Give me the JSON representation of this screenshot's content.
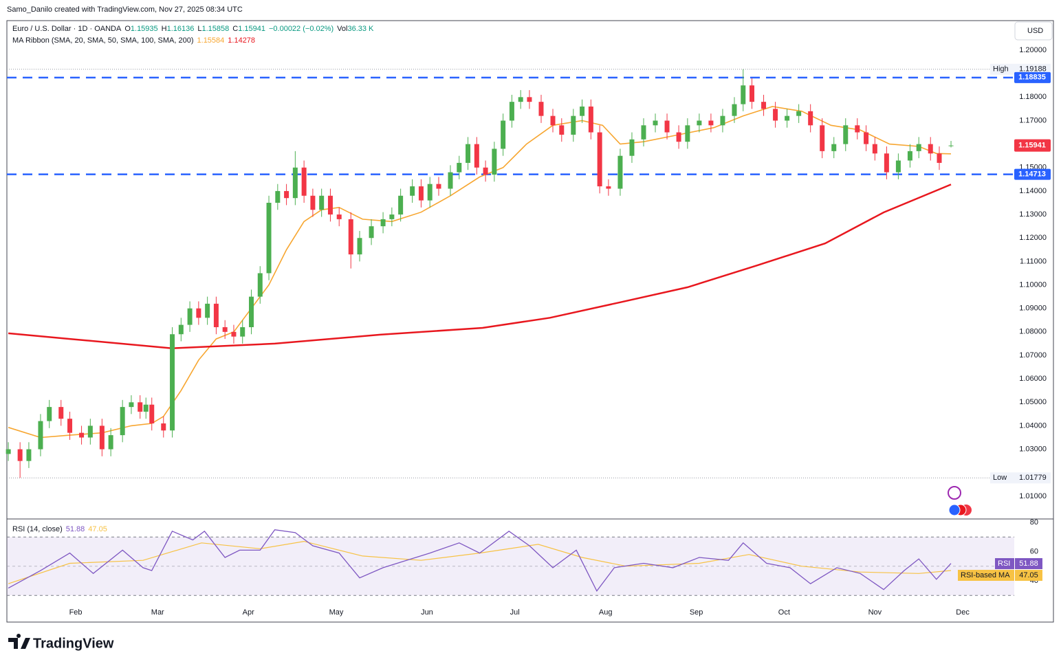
{
  "header": {
    "credit": "Samo_Danilo created with TradingView.com, Nov 27, 2025 08:34 UTC",
    "currency": "USD",
    "brand": "TradingView"
  },
  "chart_data": [
    {
      "type": "candlestick",
      "title": "Euro / U.S. Dollar · 1D · OANDA",
      "legend_fields": {
        "open": "O",
        "high": "H",
        "low": "L",
        "close": "C"
      },
      "change": "−0.00022 (−0.02%)",
      "volume_label": "Vol",
      "volume": "36.33 K",
      "ribbon_title": "MA Ribbon (SMA, 20, SMA, 50, SMA, 100, SMA, 200)",
      "up_color": "#4caf50",
      "down_color": "#f23645",
      "x": [
        9,
        13,
        16,
        20,
        23,
        27,
        30,
        34,
        37,
        41,
        44,
        48,
        51,
        54,
        56,
        58,
        62,
        65,
        68,
        71,
        74,
        77,
        80,
        83,
        86,
        89,
        92,
        95,
        98,
        101,
        104,
        107,
        110,
        113,
        116,
        119,
        122,
        126,
        129,
        133,
        137,
        140,
        143,
        147,
        150,
        153,
        156,
        160,
        163,
        166,
        169,
        172,
        175,
        178,
        181,
        184,
        187,
        191,
        195,
        198,
        202,
        205,
        208,
        211,
        214,
        218,
        222,
        226,
        230,
        234,
        238,
        241,
        245,
        249,
        253,
        257,
        260,
        263,
        267,
        271,
        275,
        279,
        283,
        287,
        291,
        295,
        299,
        302,
        305,
        309,
        313,
        317,
        320,
        324,
        327,
        331
      ],
      "open": [
        1.028,
        1.03,
        1.025,
        1.03,
        1.042,
        1.048,
        1.043,
        1.037,
        1.035,
        1.04,
        1.03,
        1.036,
        1.048,
        1.05,
        1.046,
        1.049,
        1.041,
        1.038,
        1.079,
        1.083,
        1.09,
        1.086,
        1.092,
        1.082,
        1.08,
        1.078,
        1.082,
        1.095,
        1.105,
        1.135,
        1.14,
        1.137,
        1.15,
        1.138,
        1.132,
        1.138,
        1.13,
        1.128,
        1.113,
        1.12,
        1.125,
        1.128,
        1.13,
        1.138,
        1.142,
        1.136,
        1.143,
        1.141,
        1.148,
        1.152,
        1.16,
        1.15,
        1.147,
        1.158,
        1.17,
        1.178,
        1.18,
        1.178,
        1.172,
        1.168,
        1.164,
        1.172,
        1.176,
        1.165,
        1.142,
        1.141,
        1.155,
        1.162,
        1.168,
        1.17,
        1.165,
        1.161,
        1.168,
        1.17,
        1.168,
        1.172,
        1.177,
        1.185,
        1.178,
        1.175,
        1.17,
        1.172,
        1.174,
        1.168,
        1.157,
        1.16,
        1.168,
        1.165,
        1.16,
        1.156,
        1.148,
        1.153,
        1.157,
        1.16,
        1.156,
        1.15935
      ],
      "high": [
        1.033,
        1.033,
        1.033,
        1.045,
        1.051,
        1.051,
        1.046,
        1.04,
        1.043,
        1.043,
        1.039,
        1.051,
        1.053,
        1.053,
        1.052,
        1.052,
        1.044,
        1.082,
        1.086,
        1.093,
        1.093,
        1.095,
        1.095,
        1.085,
        1.083,
        1.085,
        1.098,
        1.108,
        1.138,
        1.143,
        1.143,
        1.157,
        1.153,
        1.141,
        1.141,
        1.141,
        1.133,
        1.131,
        1.123,
        1.128,
        1.131,
        1.133,
        1.141,
        1.145,
        1.145,
        1.146,
        1.146,
        1.151,
        1.155,
        1.163,
        1.163,
        1.153,
        1.161,
        1.173,
        1.181,
        1.183,
        1.183,
        1.181,
        1.175,
        1.171,
        1.175,
        1.179,
        1.179,
        1.168,
        1.145,
        1.158,
        1.165,
        1.171,
        1.173,
        1.173,
        1.168,
        1.171,
        1.173,
        1.173,
        1.175,
        1.18,
        1.19188,
        1.188,
        1.181,
        1.178,
        1.175,
        1.177,
        1.177,
        1.171,
        1.163,
        1.171,
        1.171,
        1.168,
        1.163,
        1.159,
        1.156,
        1.16,
        1.163,
        1.163,
        1.159,
        1.16136
      ],
      "low": [
        1.025,
        1.01779,
        1.022,
        1.027,
        1.039,
        1.04,
        1.034,
        1.032,
        1.032,
        1.027,
        1.027,
        1.033,
        1.045,
        1.043,
        1.043,
        1.038,
        1.035,
        1.035,
        1.076,
        1.08,
        1.083,
        1.083,
        1.079,
        1.077,
        1.075,
        1.075,
        1.079,
        1.092,
        1.102,
        1.132,
        1.134,
        1.134,
        1.135,
        1.129,
        1.129,
        1.127,
        1.125,
        1.107,
        1.11,
        1.117,
        1.122,
        1.125,
        1.127,
        1.135,
        1.133,
        1.133,
        1.138,
        1.138,
        1.145,
        1.149,
        1.147,
        1.144,
        1.144,
        1.155,
        1.167,
        1.175,
        1.175,
        1.169,
        1.165,
        1.161,
        1.161,
        1.169,
        1.162,
        1.139,
        1.138,
        1.138,
        1.152,
        1.159,
        1.165,
        1.162,
        1.158,
        1.158,
        1.165,
        1.165,
        1.165,
        1.169,
        1.174,
        1.175,
        1.172,
        1.167,
        1.167,
        1.169,
        1.165,
        1.154,
        1.154,
        1.157,
        1.162,
        1.157,
        1.153,
        1.145,
        1.145,
        1.15,
        1.154,
        1.153,
        1.149,
        1.15858
      ],
      "close": [
        1.03,
        1.025,
        1.03,
        1.042,
        1.048,
        1.043,
        1.037,
        1.035,
        1.04,
        1.03,
        1.036,
        1.048,
        1.05,
        1.046,
        1.049,
        1.041,
        1.038,
        1.079,
        1.083,
        1.09,
        1.086,
        1.092,
        1.082,
        1.08,
        1.078,
        1.082,
        1.095,
        1.105,
        1.135,
        1.14,
        1.137,
        1.15,
        1.138,
        1.132,
        1.138,
        1.13,
        1.128,
        1.113,
        1.12,
        1.125,
        1.128,
        1.13,
        1.138,
        1.142,
        1.136,
        1.143,
        1.141,
        1.148,
        1.152,
        1.16,
        1.15,
        1.147,
        1.158,
        1.17,
        1.178,
        1.18,
        1.178,
        1.172,
        1.168,
        1.164,
        1.172,
        1.176,
        1.165,
        1.142,
        1.141,
        1.155,
        1.162,
        1.168,
        1.17,
        1.165,
        1.161,
        1.168,
        1.17,
        1.168,
        1.172,
        1.177,
        1.185,
        1.178,
        1.175,
        1.17,
        1.172,
        1.174,
        1.168,
        1.157,
        1.16,
        1.168,
        1.165,
        1.16,
        1.156,
        1.148,
        1.153,
        1.157,
        1.16,
        1.156,
        1.152,
        1.15941
      ],
      "lines": [
        {
          "color": "#f7a630",
          "x": [
            9,
            20,
            30,
            41,
            51,
            58,
            62,
            68,
            74,
            80,
            86,
            92,
            98,
            104,
            110,
            116,
            122,
            130,
            140,
            150,
            160,
            170,
            178,
            186,
            195,
            205,
            212,
            218,
            226,
            238,
            250,
            260,
            270,
            280,
            290,
            300,
            310,
            320,
            326,
            331
          ],
          "values": [
            1.0393,
            1.035,
            1.036,
            1.037,
            1.04,
            1.041,
            1.044,
            1.055,
            1.068,
            1.077,
            1.08,
            1.09,
            1.1,
            1.115,
            1.127,
            1.132,
            1.133,
            1.128,
            1.127,
            1.131,
            1.138,
            1.146,
            1.15,
            1.16,
            1.168,
            1.17,
            1.168,
            1.16,
            1.161,
            1.164,
            1.167,
            1.172,
            1.176,
            1.174,
            1.168,
            1.166,
            1.16,
            1.159,
            1.156,
            1.15584
          ]
        },
        {
          "color": "#e8171e",
          "x": [
            9,
            30,
            65,
            100,
            136,
            171,
            194,
            218,
            241,
            265,
            288,
            308,
            331
          ],
          "values": [
            1.0794,
            1.077,
            1.073,
            1.075,
            1.0788,
            1.0817,
            1.086,
            1.0926,
            1.099,
            1.1084,
            1.1177,
            1.1309,
            1.14278
          ]
        }
      ],
      "levels": [
        {
          "value": 1.18835,
          "color": "#2962ff"
        },
        {
          "value": 1.14713,
          "color": "#2962ff"
        }
      ],
      "high_label": "High",
      "low_label": "Low",
      "xlim": [
        8.5,
        352.6
      ],
      "xticks": [
        {
          "value": 32,
          "label": "Feb"
        },
        {
          "value": 60,
          "label": "Mar"
        },
        {
          "value": 91,
          "label": "Apr"
        },
        {
          "value": 121,
          "label": "May"
        },
        {
          "value": 152,
          "label": "Jun"
        },
        {
          "value": 182,
          "label": "Jul"
        },
        {
          "value": 213,
          "label": "Aug"
        },
        {
          "value": 244,
          "label": "Sep"
        },
        {
          "value": 274,
          "label": "Oct"
        },
        {
          "value": 305,
          "label": "Nov"
        },
        {
          "value": 335,
          "label": "Dec"
        }
      ],
      "ylim": [
        1.0003,
        1.2126
      ],
      "yticks": [
        {
          "value": 1.2,
          "label": "1.20000"
        },
        {
          "value": 1.18,
          "label": "1.18000"
        },
        {
          "value": 1.17,
          "label": "1.17000"
        },
        {
          "value": 1.15,
          "label": "1.15000"
        },
        {
          "value": 1.14,
          "label": "1.14000"
        },
        {
          "value": 1.13,
          "label": "1.13000"
        },
        {
          "value": 1.12,
          "label": "1.12000"
        },
        {
          "value": 1.11,
          "label": "1.11000"
        },
        {
          "value": 1.1,
          "label": "1.10000"
        },
        {
          "value": 1.09,
          "label": "1.09000"
        },
        {
          "value": 1.08,
          "label": "1.08000"
        },
        {
          "value": 1.07,
          "label": "1.07000"
        },
        {
          "value": 1.06,
          "label": "1.06000"
        },
        {
          "value": 1.05,
          "label": "1.05000"
        },
        {
          "value": 1.04,
          "label": "1.04000"
        },
        {
          "value": 1.03,
          "label": "1.03000"
        },
        {
          "value": 1.01,
          "label": "1.01000"
        }
      ]
    },
    {
      "type": "line",
      "title": "RSI (14, close)",
      "series": [
        {
          "name": "RSI",
          "color": "#7e57c2",
          "x": [
            9,
            20,
            30,
            38,
            48,
            55,
            58,
            65,
            72,
            76,
            83,
            88,
            95,
            100,
            107,
            113,
            122,
            129,
            137,
            145,
            153,
            163,
            170,
            180,
            187,
            195,
            203,
            210,
            216,
            226,
            236,
            245,
            255,
            260,
            268,
            276,
            283,
            292,
            300,
            308,
            315,
            320,
            326,
            331
          ],
          "values": [
            35,
            47,
            59,
            45,
            61,
            49,
            47,
            74,
            68,
            74,
            56,
            61,
            61,
            75,
            73,
            64,
            59,
            42,
            49,
            54,
            59,
            66,
            59,
            74,
            64,
            49,
            61,
            33,
            49,
            52,
            49,
            56,
            54,
            66,
            52,
            49,
            38,
            49,
            45,
            34,
            47,
            55,
            41,
            51.88
          ]
        },
        {
          "name": "RSI-based MA",
          "color": "#f7c244",
          "x": [
            9,
            30,
            55,
            75,
            95,
            110,
            130,
            150,
            170,
            190,
            205,
            220,
            245,
            262,
            280,
            300,
            320,
            331
          ],
          "values": [
            38,
            52,
            54,
            66,
            62,
            67,
            57,
            54,
            59,
            65,
            56,
            50,
            52,
            58,
            50,
            46,
            45,
            47.05
          ]
        }
      ],
      "band": [
        30,
        70
      ],
      "midline": 50,
      "ylim": [
        23.5,
        81.9
      ],
      "yticks": [
        80,
        60,
        40
      ]
    }
  ]
}
